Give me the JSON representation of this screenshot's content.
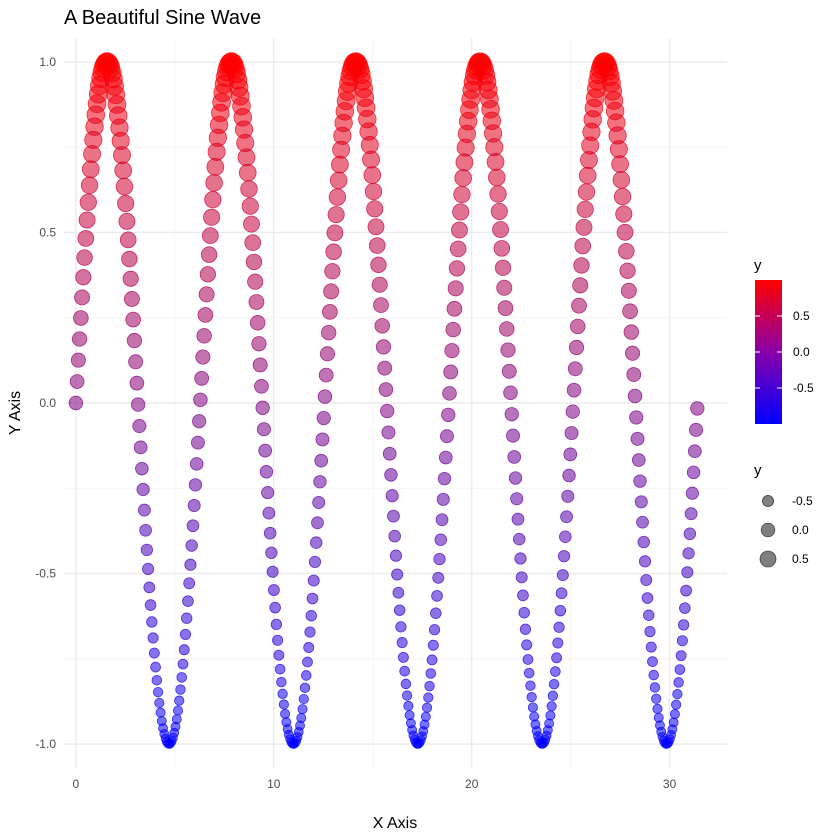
{
  "chart_data": {
    "type": "scatter",
    "title": "A Beautiful Sine Wave",
    "xlabel": "X Axis",
    "ylabel": "Y Axis",
    "function": "sin",
    "x_range": [
      0,
      31.4
    ],
    "n_points": 500,
    "xlim": [
      -0.6,
      32.9
    ],
    "ylim": [
      -1.07,
      1.07
    ],
    "x_ticks": [
      0,
      10,
      20,
      30
    ],
    "x_tick_labels": [
      "0",
      "10",
      "20",
      "30"
    ],
    "y_ticks": [
      -1.0,
      -0.5,
      0.0,
      0.5,
      1.0
    ],
    "y_tick_labels": [
      "-1.0",
      "-0.5",
      "0.0",
      "0.5",
      "1.0"
    ],
    "grid": true,
    "color_scale": {
      "title": "y",
      "low_color": "#0000ff",
      "high_color": "#ff0000",
      "ticks": [
        0.5,
        0.0,
        -0.5
      ],
      "tick_labels": [
        "0.5",
        "0.0",
        "-0.5"
      ],
      "range": [
        -1.0,
        1.0
      ]
    },
    "size_legend": {
      "title": "y",
      "values": [
        -0.5,
        0.0,
        0.5
      ],
      "labels": [
        "-0.5",
        "0.0",
        "0.5"
      ],
      "color": "#7f7f7f"
    },
    "legend_position": "right"
  }
}
